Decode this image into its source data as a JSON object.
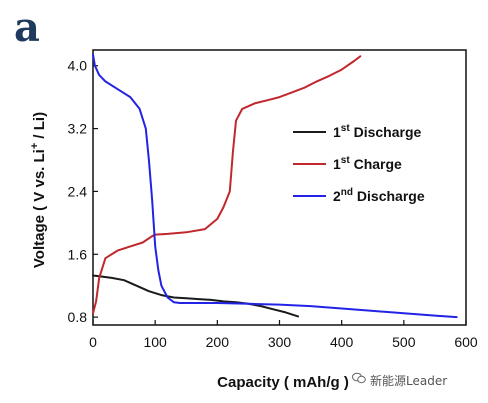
{
  "panel_label": "a",
  "watermark": "新能源Leader",
  "chart_data": {
    "type": "line",
    "xlabel": "Capacity ( mAh/g )",
    "ylabel_main": "Voltage ( V vs. Li",
    "ylabel_sup": "+",
    "ylabel_end": " / Li)",
    "xlim": [
      0,
      600
    ],
    "ylim": [
      0.7,
      4.2
    ],
    "xticks": [
      0,
      100,
      200,
      300,
      400,
      500,
      600
    ],
    "yticks": [
      0.8,
      1.6,
      2.4,
      3.2,
      4.0
    ],
    "ytick_labels": [
      "0.8",
      "1.6",
      "2.4",
      "3.2",
      "4.0"
    ],
    "grid": false,
    "legend": "right",
    "series": [
      {
        "name": "1st Discharge",
        "legend_main": "1",
        "legend_sup": "st",
        "legend_rest": " Discharge",
        "color": "#1a1a1a",
        "x": [
          0,
          10,
          30,
          50,
          70,
          90,
          110,
          130,
          150,
          170,
          190,
          210,
          230,
          250,
          270,
          290,
          310,
          330
        ],
        "y": [
          1.33,
          1.32,
          1.3,
          1.27,
          1.2,
          1.13,
          1.08,
          1.05,
          1.04,
          1.03,
          1.02,
          1.0,
          0.99,
          0.97,
          0.94,
          0.9,
          0.86,
          0.81
        ]
      },
      {
        "name": "1st Charge",
        "legend_main": "1",
        "legend_sup": "st",
        "legend_rest": " Charge",
        "color": "#c0282d",
        "x": [
          0,
          5,
          10,
          20,
          40,
          60,
          80,
          95,
          100,
          120,
          150,
          180,
          200,
          210,
          220,
          225,
          230,
          240,
          260,
          280,
          300,
          320,
          340,
          360,
          380,
          400,
          420,
          430
        ],
        "y": [
          0.85,
          1.0,
          1.3,
          1.55,
          1.65,
          1.7,
          1.75,
          1.83,
          1.85,
          1.86,
          1.88,
          1.92,
          2.05,
          2.2,
          2.4,
          2.9,
          3.3,
          3.45,
          3.52,
          3.56,
          3.6,
          3.66,
          3.72,
          3.8,
          3.87,
          3.95,
          4.06,
          4.12
        ]
      },
      {
        "name": "2nd Discharge",
        "legend_main": "2",
        "legend_sup": "nd",
        "legend_rest": " Discharge",
        "color": "#2323e6",
        "x": [
          0,
          3,
          10,
          20,
          40,
          60,
          75,
          85,
          90,
          95,
          100,
          105,
          110,
          120,
          130,
          140,
          160,
          200,
          250,
          300,
          350,
          400,
          450,
          500,
          550,
          585
        ],
        "y": [
          4.14,
          4.0,
          3.88,
          3.8,
          3.7,
          3.6,
          3.45,
          3.2,
          2.8,
          2.3,
          1.7,
          1.4,
          1.2,
          1.05,
          0.99,
          0.98,
          0.98,
          0.98,
          0.97,
          0.96,
          0.94,
          0.91,
          0.88,
          0.85,
          0.82,
          0.8
        ]
      }
    ]
  }
}
